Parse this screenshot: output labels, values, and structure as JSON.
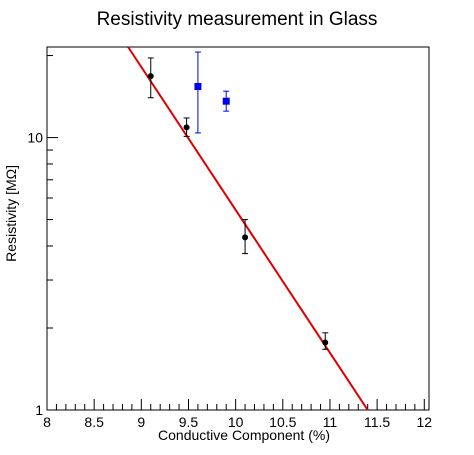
{
  "chart_data": {
    "type": "scatter",
    "title": "Resistivity measurement in Glass",
    "xlabel": "Conductive Component (%)",
    "ylabel": "Resistivity [MΩ]",
    "xlim": [
      8.0,
      12.05
    ],
    "ylim": [
      1.0,
      21.5
    ],
    "yscale": "log",
    "grid": false,
    "x_ticks": [
      8,
      8.5,
      9,
      9.5,
      10,
      10.5,
      11,
      11.5,
      12
    ],
    "x_tick_labels": [
      "8",
      "8.5",
      "9",
      "9.5",
      "10",
      "10.5",
      "11",
      "11.5",
      "12"
    ],
    "y_ticks": [
      1,
      10
    ],
    "y_tick_labels": [
      "1",
      "10"
    ],
    "series": [
      {
        "color": "#000000",
        "marker": "circle",
        "points": [
          {
            "x": 9.1,
            "y": 16.8,
            "yerr_low": 2.8,
            "yerr_high": 2.8
          },
          {
            "x": 9.48,
            "y": 10.9,
            "yerr_low": 0.8,
            "yerr_high": 0.9
          },
          {
            "x": 10.1,
            "y": 4.3,
            "yerr_low": 0.55,
            "yerr_high": 0.7
          },
          {
            "x": 10.95,
            "y": 1.77,
            "yerr_low": 0.1,
            "yerr_high": 0.15
          }
        ]
      },
      {
        "color": "#0000ee",
        "marker": "square",
        "points": [
          {
            "x": 9.6,
            "y": 15.4,
            "yerr_low": 5.0,
            "yerr_high": 5.2
          },
          {
            "x": 9.9,
            "y": 13.6,
            "yerr_low": 1.1,
            "yerr_high": 1.2
          }
        ]
      }
    ],
    "fit": {
      "type": "exponential",
      "color": "#dd0000",
      "x": [
        8.86,
        11.4
      ],
      "y": [
        21.5,
        1.0
      ]
    }
  }
}
